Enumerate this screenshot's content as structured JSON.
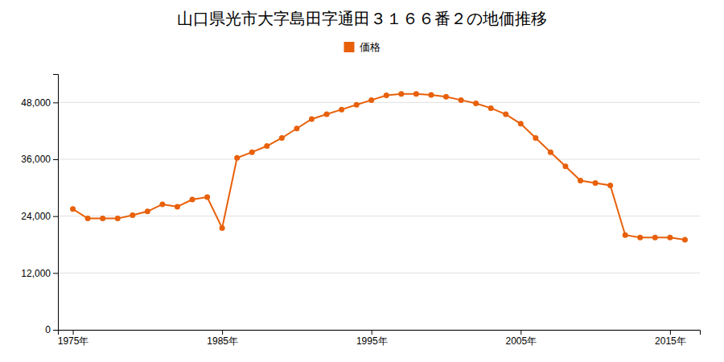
{
  "chart_data": {
    "type": "line",
    "title": "山口県光市大字島田字通田３１６６番２の地価推移",
    "x": [
      1975,
      1976,
      1977,
      1978,
      1979,
      1980,
      1981,
      1982,
      1983,
      1984,
      1985,
      1986,
      1987,
      1988,
      1989,
      1990,
      1991,
      1992,
      1993,
      1994,
      1995,
      1996,
      1997,
      1998,
      1999,
      2000,
      2001,
      2002,
      2003,
      2004,
      2005,
      2006,
      2007,
      2008,
      2009,
      2010,
      2011,
      2012,
      2013,
      2014,
      2015,
      2016
    ],
    "series": [
      {
        "name": "価格",
        "color": "#e8600a",
        "marker": "circle",
        "values": [
          25500,
          23500,
          23500,
          23500,
          24200,
          25000,
          26500,
          26000,
          27500,
          28000,
          21500,
          36300,
          37500,
          38800,
          40500,
          42500,
          44500,
          45500,
          46500,
          47500,
          48500,
          49500,
          49800,
          49800,
          49600,
          49200,
          48500,
          47800,
          46800,
          45500,
          43500,
          40500,
          37500,
          34500,
          31500,
          31000,
          30500,
          20000,
          19500,
          19500,
          19500,
          19000
        ]
      }
    ],
    "xlim": [
      1974,
      2017
    ],
    "xticks": [
      {
        "value": 1975,
        "label": "1975年"
      },
      {
        "value": 1985,
        "label": "1985年"
      },
      {
        "value": 1995,
        "label": "1995年"
      },
      {
        "value": 2005,
        "label": "2005年"
      },
      {
        "value": 2015,
        "label": "2015年"
      }
    ],
    "ylim": [
      0,
      54000
    ],
    "yticks": [
      0,
      {
        "value": 12000,
        "label": "12,000"
      },
      {
        "value": 24000,
        "label": "24,000"
      },
      {
        "value": 36000,
        "label": "36,000"
      },
      {
        "value": 48000,
        "label": "48,000"
      }
    ],
    "grid": true,
    "legend": "top"
  }
}
